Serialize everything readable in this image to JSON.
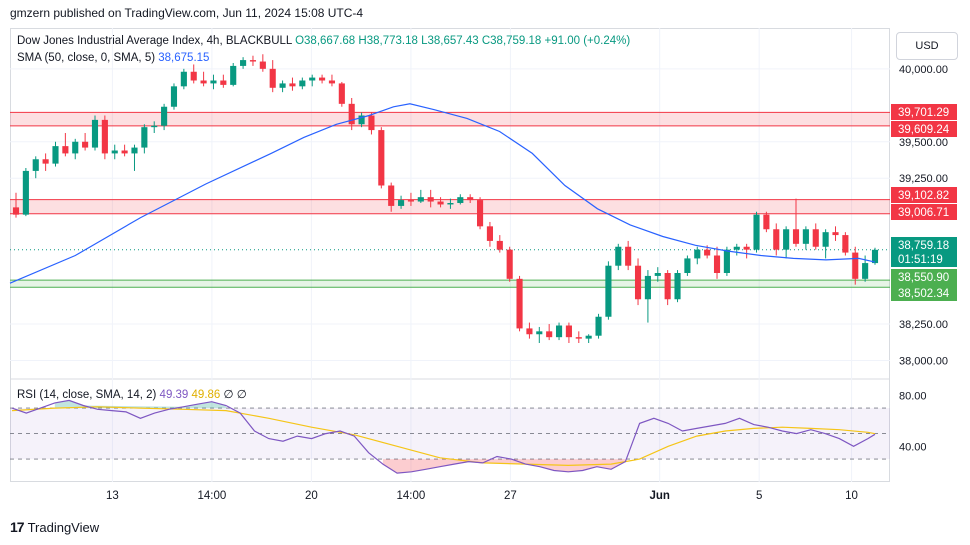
{
  "header": {
    "published": "gmzern published on TradingView.com, Jun 11, 2024 15:08 UTC-4"
  },
  "currency": {
    "label": "USD"
  },
  "legend": {
    "symbol": "Dow Jones Industrial Average Index, 4h, BLACKBULL",
    "open": "O38,667.68",
    "high": "H38,773.18",
    "low": "L38,657.43",
    "close": "C38,759.18",
    "change": "+91.00 (+0.24%)",
    "sma_label": "SMA (50, close, 0, SMA, 5)",
    "sma_value": "38,675.15",
    "rsi_label": "RSI (14, close, SMA, 14, 2)",
    "rsi_value": "49.39",
    "rsi_sma_value": "49.86",
    "rsi_extra1": "∅",
    "rsi_extra2": "∅"
  },
  "brand": {
    "name": "TradingView",
    "logo_text": "17"
  },
  "colors": {
    "up": "#089981",
    "down": "#f23645",
    "sma": "#2962ff",
    "rsi": "#7e57c2",
    "rsi_ma": "#f5c518",
    "zone_red": "#f23645",
    "zone_green": "#4caf50"
  },
  "chart_data": [
    {
      "type": "candlestick",
      "y_ticks": [
        "40,000.00",
        "39,500.00",
        "39,250.00",
        "38,250.00",
        "38,000.00"
      ],
      "y_tick_values": [
        40000,
        39500,
        39250,
        38250,
        38000
      ],
      "ylim": [
        37880,
        40280
      ],
      "x_ticks": [
        "13",
        "14:00",
        "20",
        "14:00",
        "27",
        "Jun",
        "5",
        "10"
      ],
      "price_labels": [
        {
          "text": "39,701.29",
          "value": 39701.29,
          "kind": "red"
        },
        {
          "text": "39,609.24",
          "value": 39609.24,
          "kind": "red"
        },
        {
          "text": "39,102.82",
          "value": 39102.82,
          "kind": "red"
        },
        {
          "text": "39,006.71",
          "value": 39006.71,
          "kind": "red"
        },
        {
          "text": "38,759.18",
          "value": 38759.18,
          "kind": "last"
        },
        {
          "text": "01:51:19",
          "value": 38759.18,
          "kind": "timer"
        },
        {
          "text": "38,550.90",
          "value": 38550.9,
          "kind": "green"
        },
        {
          "text": "38,502.34",
          "value": 38502.34,
          "kind": "green"
        }
      ],
      "zones": [
        {
          "top": 39701.29,
          "bottom": 39609.24,
          "color": "red"
        },
        {
          "top": 39102.82,
          "bottom": 39006.71,
          "color": "red"
        },
        {
          "top": 38550.9,
          "bottom": 38502.34,
          "color": "green"
        }
      ],
      "last_price": 38759.18,
      "candles": [
        [
          39050,
          39150,
          38980,
          39000
        ],
        [
          39000,
          39320,
          38990,
          39300
        ],
        [
          39300,
          39400,
          39250,
          39380
        ],
        [
          39380,
          39420,
          39300,
          39350
        ],
        [
          39350,
          39500,
          39330,
          39470
        ],
        [
          39470,
          39560,
          39400,
          39420
        ],
        [
          39420,
          39520,
          39380,
          39500
        ],
        [
          39500,
          39560,
          39440,
          39460
        ],
        [
          39460,
          39680,
          39440,
          39650
        ],
        [
          39650,
          39680,
          39380,
          39420
        ],
        [
          39420,
          39480,
          39380,
          39440
        ],
        [
          39440,
          39480,
          39400,
          39420
        ],
        [
          39420,
          39480,
          39300,
          39460
        ],
        [
          39460,
          39620,
          39420,
          39600
        ],
        [
          39600,
          39640,
          39560,
          39610
        ],
        [
          39610,
          39760,
          39580,
          39740
        ],
        [
          39740,
          39900,
          39720,
          39880
        ],
        [
          39880,
          40000,
          39860,
          39980
        ],
        [
          39980,
          40030,
          39900,
          39920
        ],
        [
          39920,
          39980,
          39880,
          39900
        ],
        [
          39900,
          39960,
          39860,
          39920
        ],
        [
          39920,
          39960,
          39870,
          39890
        ],
        [
          39890,
          40040,
          39880,
          40020
        ],
        [
          40020,
          40080,
          40000,
          40060
        ],
        [
          40060,
          40090,
          40020,
          40050
        ],
        [
          40050,
          40100,
          39980,
          40000
        ],
        [
          40000,
          40060,
          39840,
          39870
        ],
        [
          39870,
          39920,
          39840,
          39900
        ],
        [
          39900,
          39940,
          39850,
          39880
        ],
        [
          39880,
          39940,
          39860,
          39920
        ],
        [
          39920,
          39960,
          39880,
          39940
        ],
        [
          39940,
          39960,
          39900,
          39920
        ],
        [
          39920,
          39960,
          39880,
          39900
        ],
        [
          39900,
          39910,
          39740,
          39760
        ],
        [
          39760,
          39800,
          39580,
          39620
        ],
        [
          39620,
          39700,
          39600,
          39680
        ],
        [
          39680,
          39700,
          39550,
          39580
        ],
        [
          39580,
          39600,
          39180,
          39200
        ],
        [
          39200,
          39220,
          39020,
          39060
        ],
        [
          39060,
          39130,
          39040,
          39100
        ],
        [
          39100,
          39150,
          39060,
          39090
        ],
        [
          39090,
          39170,
          39080,
          39120
        ],
        [
          39120,
          39170,
          39050,
          39090
        ],
        [
          39090,
          39120,
          39050,
          39070
        ],
        [
          39070,
          39110,
          39040,
          39080
        ],
        [
          39080,
          39140,
          39070,
          39120
        ],
        [
          39120,
          39140,
          39080,
          39100
        ],
        [
          39100,
          39120,
          38900,
          38920
        ],
        [
          38920,
          38950,
          38780,
          38820
        ],
        [
          38820,
          38860,
          38740,
          38760
        ],
        [
          38760,
          38780,
          38540,
          38560
        ],
        [
          38560,
          38580,
          38200,
          38220
        ],
        [
          38220,
          38260,
          38150,
          38180
        ],
        [
          38180,
          38230,
          38120,
          38200
        ],
        [
          38200,
          38250,
          38140,
          38160
        ],
        [
          38160,
          38260,
          38140,
          38240
        ],
        [
          38240,
          38260,
          38120,
          38160
        ],
        [
          38160,
          38200,
          38120,
          38150
        ],
        [
          38150,
          38180,
          38120,
          38170
        ],
        [
          38170,
          38320,
          38150,
          38300
        ],
        [
          38300,
          38680,
          38280,
          38650
        ],
        [
          38650,
          38800,
          38620,
          38780
        ],
        [
          38780,
          38820,
          38620,
          38650
        ],
        [
          38650,
          38700,
          38380,
          38420
        ],
        [
          38420,
          38620,
          38260,
          38580
        ],
        [
          38580,
          38640,
          38540,
          38600
        ],
        [
          38600,
          38620,
          38380,
          38420
        ],
        [
          38420,
          38620,
          38400,
          38600
        ],
        [
          38600,
          38720,
          38580,
          38700
        ],
        [
          38700,
          38780,
          38660,
          38760
        ],
        [
          38760,
          38790,
          38700,
          38720
        ],
        [
          38720,
          38780,
          38560,
          38600
        ],
        [
          38600,
          38780,
          38580,
          38760
        ],
        [
          38760,
          38800,
          38720,
          38780
        ],
        [
          38780,
          38800,
          38700,
          38760
        ],
        [
          38760,
          39020,
          38740,
          39000
        ],
        [
          39000,
          39020,
          38880,
          38900
        ],
        [
          38900,
          38940,
          38720,
          38760
        ],
        [
          38760,
          38920,
          38700,
          38900
        ],
        [
          38900,
          39110,
          38780,
          38800
        ],
        [
          38800,
          38920,
          38760,
          38900
        ],
        [
          38900,
          38940,
          38760,
          38780
        ],
        [
          38780,
          38900,
          38700,
          38880
        ],
        [
          38880,
          38920,
          38820,
          38860
        ],
        [
          38860,
          38880,
          38720,
          38740
        ],
        [
          38740,
          38780,
          38520,
          38560
        ],
        [
          38560,
          38720,
          38540,
          38668
        ],
        [
          38668,
          38773,
          38657,
          38759
        ]
      ],
      "sma": [
        [
          0,
          38530
        ],
        [
          8,
          38720
        ],
        [
          16,
          38980
        ],
        [
          24,
          39210
        ],
        [
          32,
          39420
        ],
        [
          36,
          39530
        ],
        [
          40,
          39620
        ],
        [
          44,
          39680
        ],
        [
          47,
          39740
        ],
        [
          49,
          39760
        ],
        [
          52,
          39720
        ],
        [
          56,
          39660
        ],
        [
          60,
          39570
        ],
        [
          64,
          39420
        ],
        [
          68,
          39200
        ],
        [
          72,
          39040
        ],
        [
          76,
          38930
        ],
        [
          80,
          38850
        ],
        [
          84,
          38790
        ],
        [
          88,
          38750
        ],
        [
          92,
          38720
        ],
        [
          96,
          38700
        ],
        [
          100,
          38690
        ],
        [
          104,
          38700
        ],
        [
          106,
          38675
        ]
      ]
    },
    {
      "type": "line",
      "name": "RSI",
      "y_ticks": [
        "80.00",
        "40.00"
      ],
      "y_tick_values": [
        80,
        40
      ],
      "ylim": [
        12,
        92
      ],
      "bands": [
        70,
        50,
        30
      ],
      "rsi": [
        [
          0,
          70
        ],
        [
          2,
          66
        ],
        [
          4,
          70
        ],
        [
          6,
          74
        ],
        [
          8,
          76
        ],
        [
          10,
          72
        ],
        [
          12,
          69
        ],
        [
          14,
          68
        ],
        [
          16,
          67
        ],
        [
          18,
          62
        ],
        [
          20,
          66
        ],
        [
          22,
          69
        ],
        [
          24,
          71
        ],
        [
          26,
          73
        ],
        [
          28,
          75
        ],
        [
          30,
          72
        ],
        [
          32,
          66
        ],
        [
          34,
          52
        ],
        [
          36,
          46
        ],
        [
          38,
          44
        ],
        [
          40,
          48
        ],
        [
          42,
          46
        ],
        [
          44,
          50
        ],
        [
          46,
          52
        ],
        [
          48,
          48
        ],
        [
          50,
          35
        ],
        [
          52,
          26
        ],
        [
          54,
          19
        ],
        [
          56,
          20
        ],
        [
          58,
          22
        ],
        [
          60,
          24
        ],
        [
          62,
          26
        ],
        [
          64,
          28
        ],
        [
          66,
          27
        ],
        [
          68,
          32
        ],
        [
          70,
          30
        ],
        [
          72,
          26
        ],
        [
          74,
          24
        ],
        [
          76,
          21
        ],
        [
          78,
          20
        ],
        [
          80,
          21
        ],
        [
          82,
          24
        ],
        [
          84,
          22
        ],
        [
          86,
          28
        ],
        [
          88,
          58
        ],
        [
          90,
          62
        ],
        [
          92,
          58
        ],
        [
          94,
          52
        ],
        [
          96,
          54
        ],
        [
          98,
          56
        ],
        [
          100,
          58
        ],
        [
          102,
          62
        ],
        [
          104,
          57
        ],
        [
          106,
          55
        ],
        [
          108,
          52
        ],
        [
          110,
          50
        ],
        [
          112,
          53
        ],
        [
          114,
          50
        ],
        [
          116,
          46
        ],
        [
          118,
          40
        ],
        [
          120,
          46
        ],
        [
          121,
          49.39
        ]
      ],
      "rsi_sma": [
        [
          0,
          68
        ],
        [
          6,
          70
        ],
        [
          12,
          71
        ],
        [
          18,
          70
        ],
        [
          24,
          69
        ],
        [
          30,
          68
        ],
        [
          36,
          62
        ],
        [
          42,
          55
        ],
        [
          48,
          49
        ],
        [
          54,
          40
        ],
        [
          60,
          31
        ],
        [
          66,
          27
        ],
        [
          72,
          26
        ],
        [
          78,
          25
        ],
        [
          84,
          26
        ],
        [
          88,
          30
        ],
        [
          92,
          40
        ],
        [
          96,
          48
        ],
        [
          100,
          52
        ],
        [
          104,
          54
        ],
        [
          108,
          55
        ],
        [
          112,
          54
        ],
        [
          116,
          53
        ],
        [
          120,
          51
        ],
        [
          121,
          49.86
        ]
      ]
    }
  ]
}
